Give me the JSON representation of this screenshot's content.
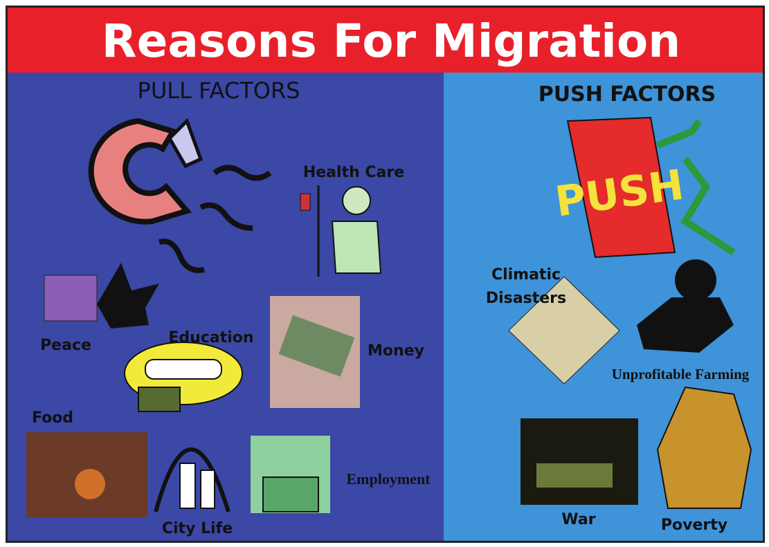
{
  "title": "Reasons For Migration",
  "pull_factors": {
    "heading": "PULL FACTORS",
    "items": [
      "Health Care",
      "Peace",
      "Education",
      "Money",
      "Food",
      "City Life",
      "Employment"
    ]
  },
  "push_factors": {
    "heading": "PUSH FACTORS",
    "items": [
      [
        "Climatic",
        "Disasters"
      ],
      "Unprofitable Farming",
      "War",
      "Poverty"
    ]
  }
}
